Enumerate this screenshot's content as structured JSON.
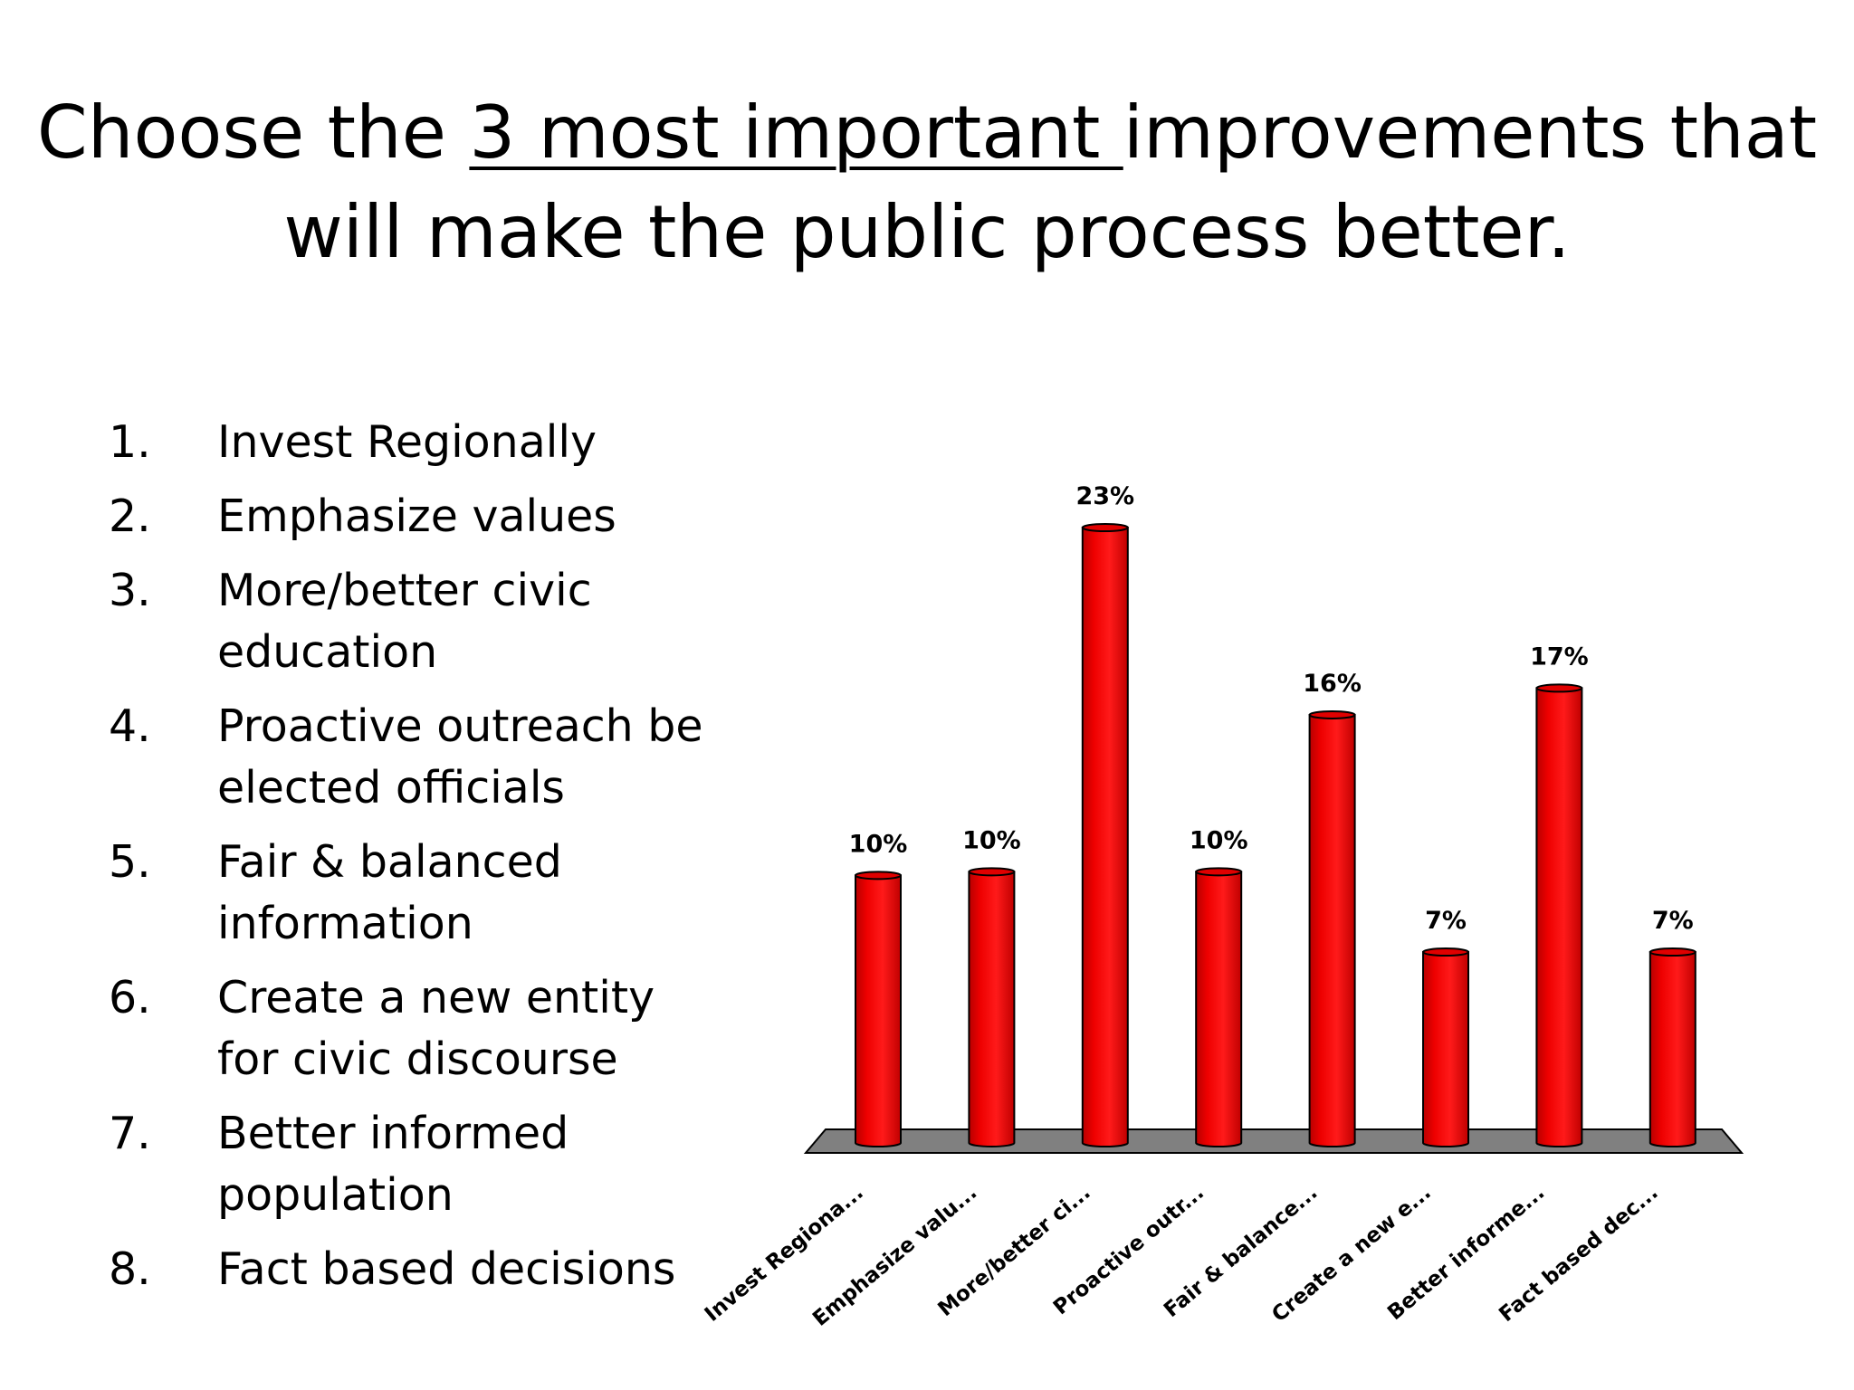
{
  "title": {
    "part1": "Choose the ",
    "part2": "3 most important ",
    "part3": "improvements that",
    "line2": "will make the public process better."
  },
  "options": [
    {
      "num": "1.",
      "text": "Invest Regionally"
    },
    {
      "num": "2.",
      "text": "Emphasize values"
    },
    {
      "num": "3.",
      "text": "More/better civic education"
    },
    {
      "num": "4.",
      "text": "Proactive outreach be elected officials"
    },
    {
      "num": "5.",
      "text": "Fair & balanced information"
    },
    {
      "num": "6.",
      "text": "Create a new entity for civic discourse"
    },
    {
      "num": "7.",
      "text": "Better informed population"
    },
    {
      "num": "8.",
      "text": "Fact based decisions"
    }
  ],
  "chart_data": {
    "type": "bar",
    "categories": [
      "Invest Regiona...",
      "Emphasize valu...",
      "More/better ci...",
      "Proactive outr...",
      "Fair & balance...",
      "Create a new e...",
      "Better informe...",
      "Fact based dec..."
    ],
    "values": [
      10,
      10,
      23,
      10,
      16,
      7,
      17,
      7
    ],
    "data_labels": [
      "10%",
      "10%",
      "23%",
      "10%",
      "16%",
      "7%",
      "17%",
      "7%"
    ],
    "bar_color": "#ee0000",
    "floor_color": "#808080",
    "ylim": [
      0,
      23
    ],
    "grid": false,
    "legend": "none"
  }
}
